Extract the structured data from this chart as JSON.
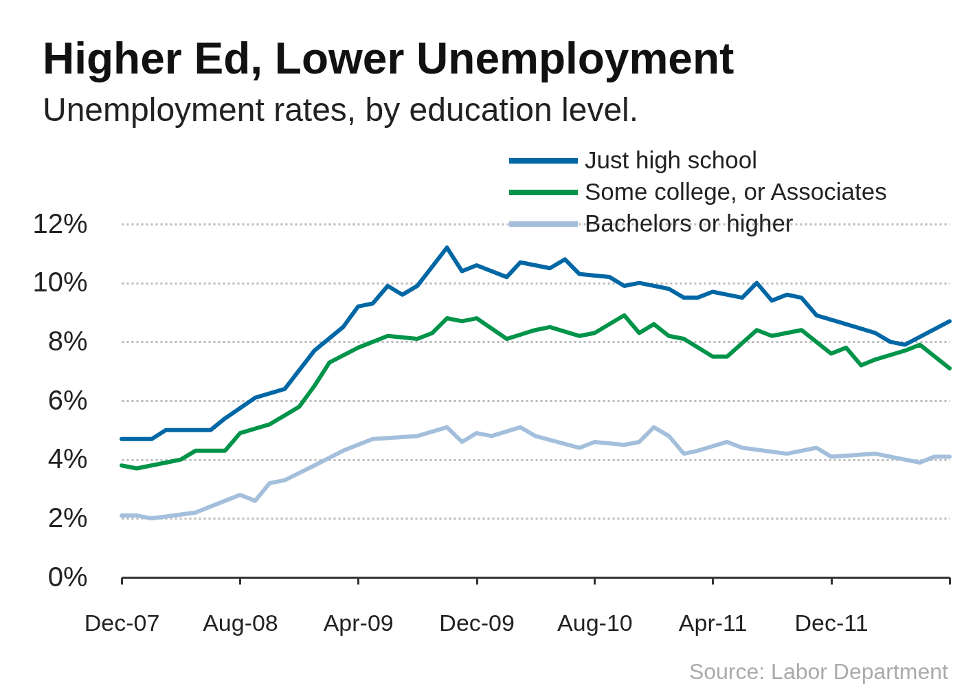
{
  "chart_data": {
    "type": "line",
    "title": "Higher Ed, Lower Unemployment",
    "subtitle": "Unemployment rates, by education level.",
    "annotations": [
      "Source: Labor Department"
    ],
    "xlim": [
      "2007-12",
      "2012-08"
    ],
    "xticks": [
      {
        "value": "2007-12",
        "label": "Dec-07"
      },
      {
        "value": "2008-08",
        "label": "Aug-08"
      },
      {
        "value": "2009-04",
        "label": "Apr-09"
      },
      {
        "value": "2009-12",
        "label": "Dec-09"
      },
      {
        "value": "2010-08",
        "label": "Aug-10"
      },
      {
        "value": "2011-04",
        "label": "Apr-11"
      },
      {
        "value": "2011-12",
        "label": "Dec-11"
      },
      {
        "value": "2012-08",
        "label": null
      }
    ],
    "ylim": [
      0,
      12
    ],
    "yticks": [
      {
        "value": 0,
        "label": "0%"
      },
      {
        "value": 2,
        "label": "2%"
      },
      {
        "value": 4,
        "label": "4%"
      },
      {
        "value": 6,
        "label": "6%"
      },
      {
        "value": 8,
        "label": "8%"
      },
      {
        "value": 10,
        "label": "10%"
      },
      {
        "value": 12,
        "label": "12%"
      }
    ],
    "grid": "y",
    "legend": "top right",
    "series": [
      {
        "name": "Just high school",
        "color": "#0067a5",
        "x": [
          "2007-12",
          "2008-02",
          "2008-03",
          "2008-06",
          "2008-07",
          "2008-09",
          "2008-11",
          "2009-01",
          "2009-03",
          "2009-04",
          "2009-05",
          "2009-06",
          "2009-07",
          "2009-08",
          "2009-10",
          "2009-11",
          "2009-12",
          "2010-02",
          "2010-03",
          "2010-05",
          "2010-06",
          "2010-07",
          "2010-09",
          "2010-10",
          "2010-11",
          "2011-01",
          "2011-02",
          "2011-03",
          "2011-04",
          "2011-06",
          "2011-07",
          "2011-08",
          "2011-09",
          "2011-10",
          "2011-11",
          "2012-01",
          "2012-03",
          "2012-04",
          "2012-05",
          "2012-08"
        ],
        "values": [
          4.7,
          4.7,
          5.0,
          5.0,
          5.4,
          6.1,
          6.4,
          7.7,
          8.5,
          9.2,
          9.3,
          9.9,
          9.6,
          9.9,
          11.2,
          10.4,
          10.6,
          10.2,
          10.7,
          10.5,
          10.8,
          10.3,
          10.2,
          9.9,
          10.0,
          9.8,
          9.5,
          9.5,
          9.7,
          9.5,
          10.0,
          9.4,
          9.6,
          9.5,
          8.9,
          8.6,
          8.3,
          8.0,
          7.9,
          8.7
        ]
      },
      {
        "name": "Some college, or Associates",
        "color": "#00944a",
        "x": [
          "2007-12",
          "2008-01",
          "2008-04",
          "2008-05",
          "2008-07",
          "2008-08",
          "2008-10",
          "2008-11",
          "2008-12",
          "2009-01",
          "2009-02",
          "2009-04",
          "2009-06",
          "2009-08",
          "2009-09",
          "2009-10",
          "2009-11",
          "2009-12",
          "2010-02",
          "2010-04",
          "2010-05",
          "2010-07",
          "2010-08",
          "2010-10",
          "2010-11",
          "2010-12",
          "2011-01",
          "2011-02",
          "2011-04",
          "2011-05",
          "2011-07",
          "2011-08",
          "2011-10",
          "2011-12",
          "2012-01",
          "2012-02",
          "2012-03",
          "2012-05",
          "2012-06",
          "2012-08"
        ],
        "values": [
          3.8,
          3.7,
          4.0,
          4.3,
          4.3,
          4.9,
          5.2,
          5.5,
          5.8,
          6.5,
          7.3,
          7.8,
          8.2,
          8.1,
          8.3,
          8.8,
          8.7,
          8.8,
          8.1,
          8.4,
          8.5,
          8.2,
          8.3,
          8.9,
          8.3,
          8.6,
          8.2,
          8.1,
          7.5,
          7.5,
          8.4,
          8.2,
          8.4,
          7.6,
          7.8,
          7.2,
          7.4,
          7.7,
          7.9,
          7.1
        ]
      },
      {
        "name": "Bachelors or higher",
        "color": "#a3bfdc",
        "x": [
          "2007-12",
          "2008-01",
          "2008-02",
          "2008-05",
          "2008-07",
          "2008-08",
          "2008-09",
          "2008-10",
          "2008-11",
          "2009-01",
          "2009-03",
          "2009-05",
          "2009-08",
          "2009-10",
          "2009-11",
          "2009-12",
          "2010-01",
          "2010-03",
          "2010-04",
          "2010-07",
          "2010-08",
          "2010-10",
          "2010-11",
          "2010-12",
          "2011-01",
          "2011-02",
          "2011-03",
          "2011-05",
          "2011-06",
          "2011-09",
          "2011-11",
          "2011-12",
          "2012-03",
          "2012-06",
          "2012-07",
          "2012-08"
        ],
        "values": [
          2.1,
          2.1,
          2.0,
          2.2,
          2.6,
          2.8,
          2.6,
          3.2,
          3.3,
          3.8,
          4.3,
          4.7,
          4.8,
          5.1,
          4.6,
          4.9,
          4.8,
          5.1,
          4.8,
          4.4,
          4.6,
          4.5,
          4.6,
          5.1,
          4.8,
          4.2,
          4.3,
          4.6,
          4.4,
          4.2,
          4.4,
          4.1,
          4.2,
          3.9,
          4.1,
          4.1
        ]
      }
    ]
  }
}
